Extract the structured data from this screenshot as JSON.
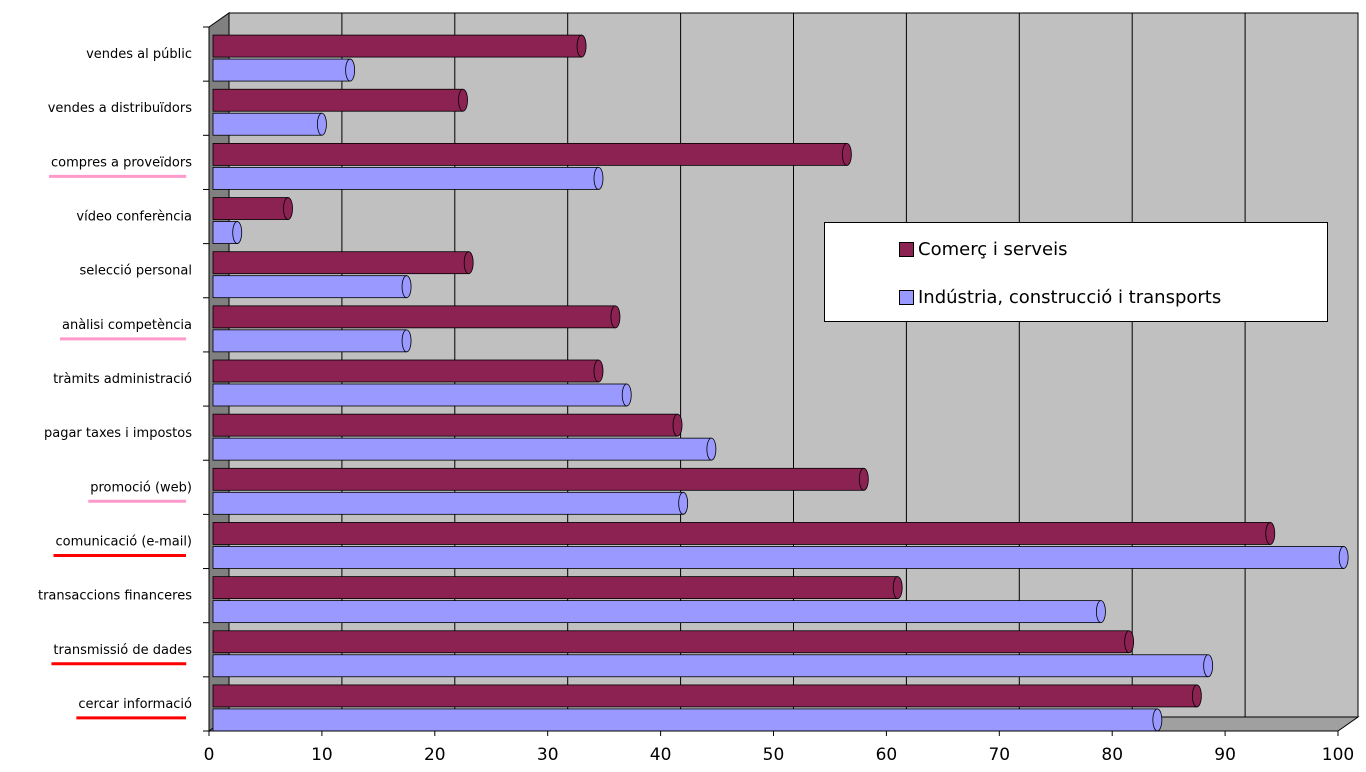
{
  "chart_data": {
    "type": "bar",
    "orientation": "horizontal",
    "categories": [
      "vendes al públic",
      "vendes a distribuïdors",
      "compres a proveïdors",
      "vídeo conferència",
      "selecció personal",
      "anàlisi competència",
      "tràmits administració",
      "pagar taxes i impostos",
      "promoció (web)",
      "comunicació (e-mail)",
      "transaccions financeres",
      "transmissió de dades",
      "cercar informació"
    ],
    "series": [
      {
        "name": "Comerç i serveis",
        "color": "#8B2252",
        "values": [
          33,
          22.5,
          56.5,
          7,
          23,
          36,
          34.5,
          41.5,
          58,
          94,
          61,
          81.5,
          87.5
        ]
      },
      {
        "name": "Indústria, construcció i transports",
        "color": "#9999FF",
        "values": [
          12.5,
          10,
          34.5,
          2.5,
          17.5,
          17.5,
          37,
          44.5,
          42,
          100.5,
          79,
          88.5,
          84
        ]
      }
    ],
    "xlim": [
      0,
      100
    ],
    "xticks": [
      "0",
      "10",
      "20",
      "30",
      "40",
      "50",
      "60",
      "70",
      "80",
      "90",
      "100"
    ],
    "grid": true,
    "legend_position": "right",
    "underlined_categories": {
      "pink": [
        "compres a proveïdors",
        "anàlisi competència",
        "promoció (web)"
      ],
      "red": [
        "comunicació (e-mail)",
        "transmissió de dades",
        "cercar informació"
      ]
    },
    "colors": {
      "plot_background": "#C0C0C0",
      "underline_pink": "#FF99CC",
      "underline_red": "#FF0000"
    }
  }
}
